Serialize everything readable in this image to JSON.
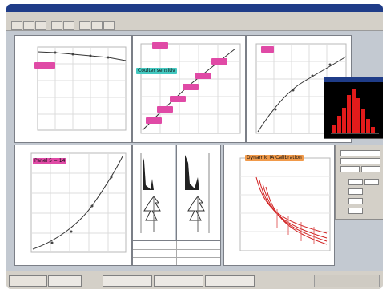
{
  "window": {
    "title": ""
  },
  "menus": [],
  "toolbar": {
    "buttons": [
      "open-icon",
      "save-icon",
      "print-icon",
      "cut-icon",
      "copy-icon",
      "chart-icon",
      "zoom-icon",
      "help-icon"
    ]
  },
  "panels": {
    "top_left": {
      "tag": "",
      "tag_color": "#e04aa6"
    },
    "top_mid": {
      "tag": "",
      "tag_color": "#e04aa6",
      "callout": "Coulter sensitiv",
      "callout_color": "#43c8c0",
      "point_tags": [
        "",
        "",
        "",
        "",
        "",
        ""
      ]
    },
    "top_right": {
      "tag": "",
      "tag_color": "#e04aa6"
    },
    "bottom_left": {
      "tag": "Panel 5 = 14",
      "tag_color": "#e04aa6"
    },
    "bottom_right": {
      "tag": "Dynamic IA Calibration",
      "tag_color": "#f19a4a"
    }
  },
  "histogram_window": {
    "title": "",
    "bar_color": "#e31b1b"
  },
  "taskbar": {
    "items": [
      "",
      "",
      "",
      "",
      ""
    ],
    "start": ""
  }
}
